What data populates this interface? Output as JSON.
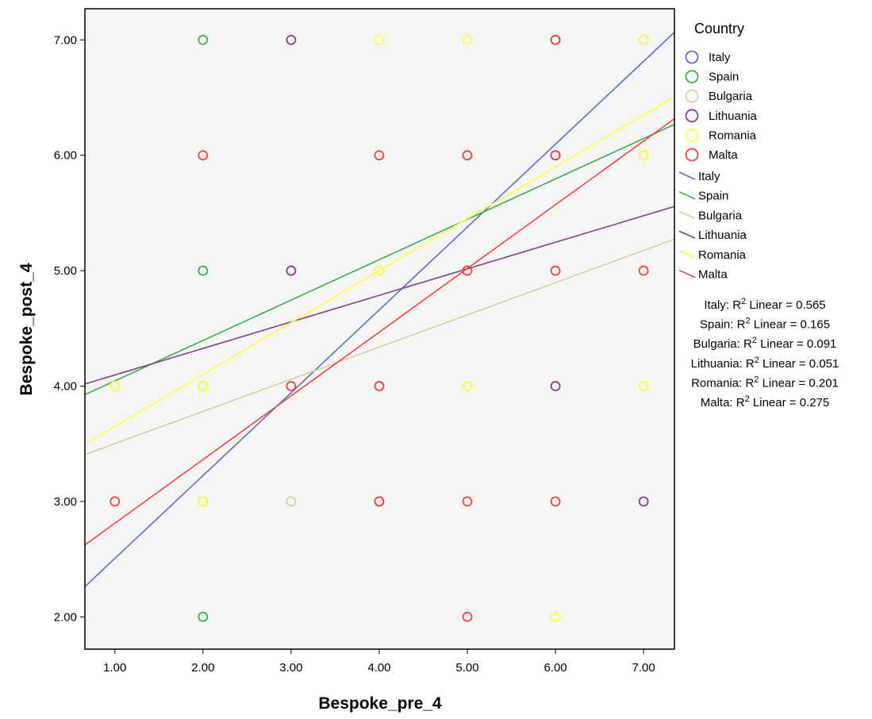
{
  "chart_data": {
    "type": "scatter",
    "xlabel": "Bespoke_pre_4",
    "ylabel": "Bespoke_post_4",
    "xlim": [
      0.66,
      7.35
    ],
    "ylim": [
      1.72,
      7.27
    ],
    "x_ticks": [
      "1.00",
      "2.00",
      "3.00",
      "4.00",
      "5.00",
      "6.00",
      "7.00"
    ],
    "y_ticks": [
      "2.00",
      "3.00",
      "4.00",
      "5.00",
      "6.00",
      "7.00"
    ],
    "x_tick_values": [
      1,
      2,
      3,
      4,
      5,
      6,
      7
    ],
    "y_tick_values": [
      2,
      3,
      4,
      5,
      6,
      7
    ],
    "grid": false,
    "plot_background": "#f5f5f5",
    "legend": {
      "title": "Country",
      "placement": "right",
      "marker_entries": [
        "Italy",
        "Spain",
        "Bulgaria",
        "Lithuania",
        "Romania",
        "Malta"
      ],
      "line_entries": [
        "Italy",
        "Spain",
        "Bulgaria",
        "Lithuania",
        "Romania",
        "Malta"
      ]
    },
    "series": [
      {
        "name": "Italy",
        "color": "#5d6fc6",
        "points": [
          [
            4,
            4
          ],
          [
            6,
            6
          ],
          [
            7,
            7
          ],
          [
            5,
            5
          ],
          [
            6,
            7
          ]
        ],
        "fit": {
          "intercept": 1.788,
          "slope": 0.718
        },
        "r2_label": "Italy: R",
        "r2_value": "Linear = 0.565"
      },
      {
        "name": "Spain",
        "color": "#37b04a",
        "points": [
          [
            2,
            7
          ],
          [
            2,
            5
          ],
          [
            1,
            4
          ],
          [
            2,
            4
          ],
          [
            2,
            3
          ],
          [
            2,
            2
          ],
          [
            5,
            6
          ],
          [
            6,
            7
          ],
          [
            7,
            6
          ]
        ],
        "fit": {
          "intercept": 3.695,
          "slope": 0.35
        },
        "r2_label": "Spain: R",
        "r2_value": "Linear = 0.165"
      },
      {
        "name": "Bulgaria",
        "color": "#d8cf9e",
        "points": [
          [
            3,
            3
          ],
          [
            6,
            3
          ],
          [
            7,
            4
          ],
          [
            7,
            6
          ],
          [
            6,
            2
          ],
          [
            4,
            5
          ],
          [
            5,
            4
          ],
          [
            1,
            4
          ],
          [
            2,
            3
          ]
        ],
        "fit": {
          "intercept": 3.222,
          "slope": 0.279
        },
        "r2_label": "Bulgaria: R",
        "r2_value": "Linear = 0.091"
      },
      {
        "name": "Lithuania",
        "color": "#8a3c8f",
        "points": [
          [
            3,
            7
          ],
          [
            3,
            5
          ],
          [
            6,
            4
          ],
          [
            7,
            3
          ],
          [
            4,
            3
          ],
          [
            6,
            6
          ]
        ],
        "fit": {
          "intercept": 3.866,
          "slope": 0.23
        },
        "r2_label": "Lithuania: R",
        "r2_value": "Linear = 0.051"
      },
      {
        "name": "Romania",
        "color": "#ffff44",
        "points": [
          [
            4,
            7
          ],
          [
            5,
            7
          ],
          [
            7,
            7
          ],
          [
            4,
            5
          ],
          [
            5,
            4
          ],
          [
            6,
            2
          ],
          [
            1,
            4
          ],
          [
            2,
            4
          ],
          [
            2,
            3
          ],
          [
            7,
            6
          ],
          [
            7,
            4
          ]
        ],
        "fit": {
          "intercept": 3.2,
          "slope": 0.45
        },
        "r2_label": "Romania: R",
        "r2_value": "Linear = 0.201"
      },
      {
        "name": "Malta",
        "color": "#f0473d",
        "points": [
          [
            1,
            3
          ],
          [
            2,
            6
          ],
          [
            3,
            4
          ],
          [
            4,
            4
          ],
          [
            4,
            3
          ],
          [
            4,
            6
          ],
          [
            5,
            6
          ],
          [
            5,
            5
          ],
          [
            5,
            3
          ],
          [
            5,
            2
          ],
          [
            6,
            7
          ],
          [
            6,
            6
          ],
          [
            6,
            5
          ],
          [
            7,
            5
          ],
          [
            6,
            3
          ]
        ],
        "fit": {
          "intercept": 2.259,
          "slope": 0.552
        },
        "r2_label": "Malta: R",
        "r2_value": "Linear = 0.275"
      }
    ]
  }
}
